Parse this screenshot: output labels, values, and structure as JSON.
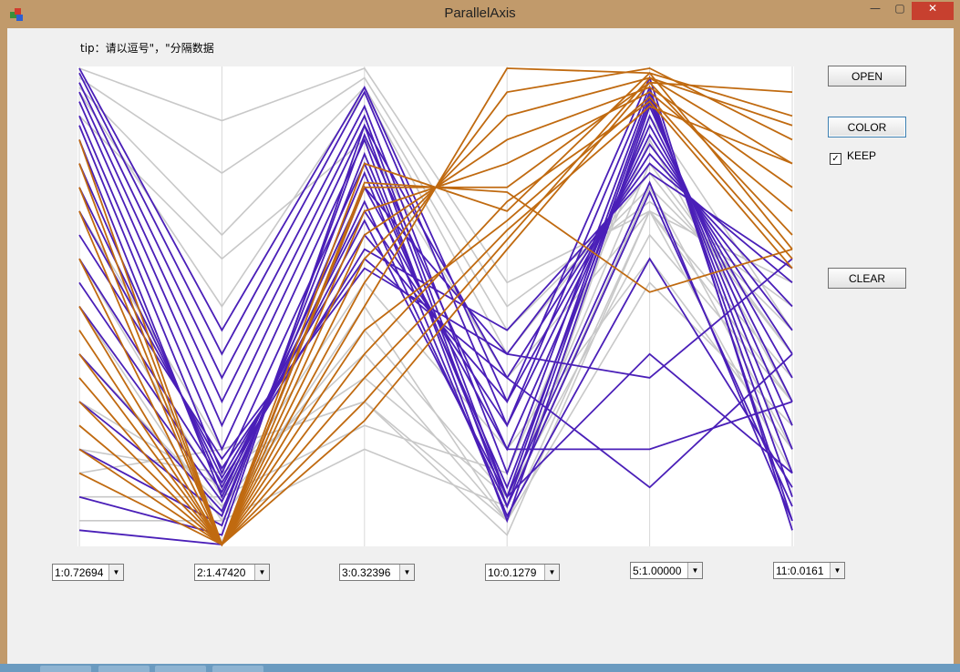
{
  "window": {
    "title": "ParallelAxis",
    "min_glyph": "—",
    "max_glyph": "▢",
    "close_glyph": "✕"
  },
  "tip": "tip：请以逗号\"，\"分隔数据",
  "buttons": {
    "open": "OPEN",
    "color": "COLOR",
    "clear": "CLEAR"
  },
  "keep": {
    "label": "KEEP",
    "checked": true,
    "check_glyph": "✓"
  },
  "axis_selects": [
    {
      "value": "1:0.72694"
    },
    {
      "value": "2:1.47420"
    },
    {
      "value": "3:0.32396"
    },
    {
      "value": "10:0.1279"
    },
    {
      "value": "5:1.00000"
    },
    {
      "value": "11:0.0161"
    }
  ],
  "colors": {
    "gray": "#c8c8c8",
    "purple": "#4a1fb8",
    "orange": "#c06a10"
  },
  "chart_data": {
    "type": "parallel_coordinates",
    "axes": 6,
    "ylim": [
      0,
      1
    ],
    "groups": [
      {
        "color": "gray",
        "lines": [
          [
            1.0,
            0.89,
            1.0,
            0.55,
            0.7,
            0.55
          ],
          [
            0.98,
            0.78,
            0.98,
            0.5,
            0.72,
            0.5
          ],
          [
            0.96,
            0.65,
            0.96,
            0.45,
            0.75,
            0.45
          ],
          [
            0.95,
            0.5,
            0.95,
            0.4,
            0.78,
            0.4
          ],
          [
            0.9,
            0.6,
            0.85,
            0.35,
            0.7,
            0.3
          ],
          [
            0.6,
            0.1,
            0.55,
            0.2,
            0.6,
            0.2
          ],
          [
            0.5,
            0.05,
            0.5,
            0.05,
            0.55,
            0.25
          ],
          [
            0.4,
            0.08,
            0.45,
            0.1,
            0.65,
            0.3
          ],
          [
            0.3,
            0.12,
            0.4,
            0.05,
            0.7,
            0.35
          ],
          [
            0.2,
            0.15,
            0.35,
            0.1,
            0.8,
            0.4
          ],
          [
            0.15,
            0.2,
            0.3,
            0.05,
            0.9,
            0.45
          ],
          [
            0.1,
            0.1,
            0.25,
            0.15,
            0.85,
            0.3
          ],
          [
            0.05,
            0.05,
            0.2,
            0.08,
            0.75,
            0.2
          ],
          [
            0.7,
            0.2,
            0.3,
            0.02,
            0.7,
            0.15
          ]
        ]
      },
      {
        "color": "purple",
        "lines": [
          [
            1.0,
            0.45,
            0.96,
            0.3,
            0.98,
            0.03
          ],
          [
            0.99,
            0.4,
            0.95,
            0.25,
            0.96,
            0.05
          ],
          [
            0.97,
            0.35,
            0.92,
            0.15,
            0.95,
            0.1
          ],
          [
            0.95,
            0.3,
            0.9,
            0.1,
            0.94,
            0.15
          ],
          [
            0.93,
            0.25,
            0.88,
            0.08,
            0.93,
            0.2
          ],
          [
            0.9,
            0.2,
            0.85,
            0.05,
            0.92,
            0.25
          ],
          [
            0.88,
            0.15,
            0.8,
            0.12,
            0.9,
            0.3
          ],
          [
            0.85,
            0.1,
            0.75,
            0.2,
            0.88,
            0.35
          ],
          [
            0.8,
            0.12,
            0.7,
            0.25,
            0.86,
            0.4
          ],
          [
            0.75,
            0.14,
            0.65,
            0.3,
            0.84,
            0.45
          ],
          [
            0.7,
            0.16,
            0.6,
            0.35,
            0.82,
            0.5
          ],
          [
            0.65,
            0.18,
            0.58,
            0.4,
            0.8,
            0.55
          ],
          [
            0.6,
            0.13,
            0.62,
            0.45,
            0.78,
            0.58
          ],
          [
            0.55,
            0.11,
            0.68,
            0.1,
            0.76,
            0.05
          ],
          [
            0.5,
            0.09,
            0.72,
            0.08,
            0.74,
            0.08
          ],
          [
            0.4,
            0.07,
            0.78,
            0.06,
            0.6,
            0.12
          ],
          [
            0.3,
            0.06,
            0.82,
            0.1,
            0.4,
            0.15
          ],
          [
            0.2,
            0.04,
            0.86,
            0.2,
            0.2,
            0.3
          ],
          [
            0.1,
            0.02,
            0.88,
            0.35,
            0.12,
            0.4
          ],
          [
            0.03,
            0.0,
            0.75,
            0.4,
            0.35,
            0.6
          ]
        ]
      },
      {
        "color": "orange",
        "lines": [
          [
            0.85,
            0.0,
            0.5,
            1.0,
            0.99,
            0.9
          ],
          [
            0.8,
            0.0,
            0.55,
            0.95,
            1.0,
            0.85
          ],
          [
            0.75,
            0.0,
            0.6,
            0.9,
            0.98,
            0.8
          ],
          [
            0.7,
            0.0,
            0.65,
            0.85,
            0.96,
            0.75
          ],
          [
            0.6,
            0.0,
            0.7,
            0.8,
            0.95,
            0.7
          ],
          [
            0.5,
            0.0,
            0.75,
            0.75,
            0.97,
            0.65
          ],
          [
            0.45,
            0.0,
            0.8,
            0.7,
            0.99,
            0.62
          ],
          [
            0.4,
            0.0,
            0.45,
            0.68,
            0.94,
            0.6
          ],
          [
            0.35,
            0.0,
            0.4,
            0.72,
            0.93,
            0.58
          ],
          [
            0.3,
            0.0,
            0.35,
            0.66,
            0.92,
            0.8
          ],
          [
            0.25,
            0.0,
            0.3,
            0.64,
            0.98,
            0.88
          ],
          [
            0.2,
            0.0,
            0.26,
            0.62,
            0.97,
            0.95
          ],
          [
            0.15,
            0.0,
            0.76,
            0.74,
            0.53,
            0.62
          ]
        ]
      }
    ]
  }
}
